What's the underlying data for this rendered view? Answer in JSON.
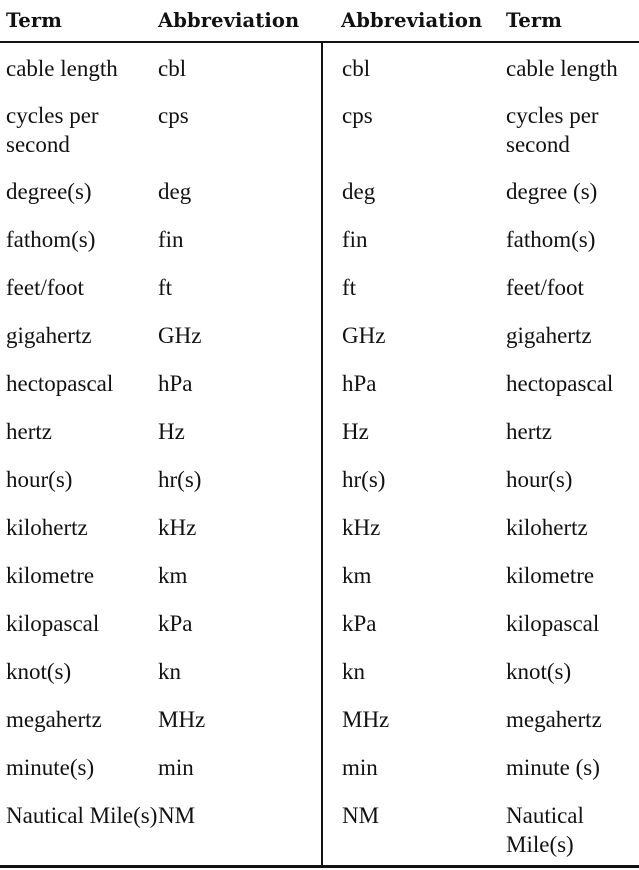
{
  "table": {
    "headers": [
      "Term",
      "Abbreviation",
      "Abbreviation",
      "Term"
    ],
    "rows": [
      {
        "left_term": "cable length",
        "left_abbr": "cbl",
        "right_abbr": "cbl",
        "right_term": "cable length"
      },
      {
        "left_term": "cycles per second",
        "left_abbr": "cps",
        "right_abbr": "cps",
        "right_term": "cycles per second"
      },
      {
        "left_term": "degree(s)",
        "left_abbr": "deg",
        "right_abbr": "deg",
        "right_term": "degree (s)"
      },
      {
        "left_term": "fathom(s)",
        "left_abbr": "fin",
        "right_abbr": "fin",
        "right_term": "fathom(s)"
      },
      {
        "left_term": "feet/foot",
        "left_abbr": "ft",
        "right_abbr": "ft",
        "right_term": "feet/foot"
      },
      {
        "left_term": "gigahertz",
        "left_abbr": "GHz",
        "right_abbr": "GHz",
        "right_term": "gigahertz"
      },
      {
        "left_term": "hectopascal",
        "left_abbr": "hPa",
        "right_abbr": "hPa",
        "right_term": "hectopascal"
      },
      {
        "left_term": "hertz",
        "left_abbr": "Hz",
        "right_abbr": "Hz",
        "right_term": "hertz"
      },
      {
        "left_term": "hour(s)",
        "left_abbr": "hr(s)",
        "right_abbr": "hr(s)",
        "right_term": "hour(s)"
      },
      {
        "left_term": "kilohertz",
        "left_abbr": "kHz",
        "right_abbr": "kHz",
        "right_term": "kilohertz"
      },
      {
        "left_term": "kilometre",
        "left_abbr": "km",
        "right_abbr": "km",
        "right_term": "kilometre"
      },
      {
        "left_term": "kilopascal",
        "left_abbr": "kPa",
        "right_abbr": "kPa",
        "right_term": "kilopascal"
      },
      {
        "left_term": "knot(s)",
        "left_abbr": "kn",
        "right_abbr": "kn",
        "right_term": "knot(s)"
      },
      {
        "left_term": "megahertz",
        "left_abbr": "MHz",
        "right_abbr": "MHz",
        "right_term": "megahertz"
      },
      {
        "left_term": "minute(s)",
        "left_abbr": "min",
        "right_abbr": "min",
        "right_term": "minute (s)"
      },
      {
        "left_term": "Nautical Mile(s)",
        "left_abbr": "NM",
        "right_abbr": "NM",
        "right_term": "Nautical Mile(s)"
      }
    ]
  }
}
